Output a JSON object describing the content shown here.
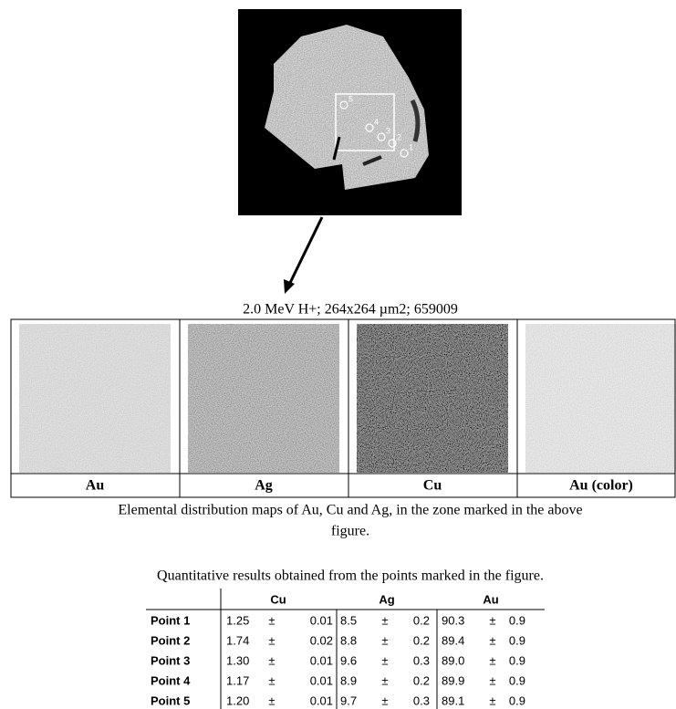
{
  "figure": {
    "point_labels": [
      "5",
      "4",
      "3",
      "2",
      "1"
    ],
    "beam_caption": "2.0 MeV H+; 264x264 µm2; 659009",
    "maps": [
      "Au",
      "Ag",
      "Cu",
      "Au (color)"
    ],
    "caption": "Elemental distribution maps of Au, Cu and Ag, in the zone marked in the above",
    "caption_cont": "figure."
  },
  "table": {
    "title": "Quantitative results obtained from the points marked in the figure.",
    "columns": [
      "Cu",
      "Ag",
      "Au"
    ],
    "pm": "±",
    "rows": [
      {
        "label": "Point 1",
        "values": [
          [
            "1.25",
            "0.01"
          ],
          [
            "8.5",
            "0.2"
          ],
          [
            "90.3",
            "0.9"
          ]
        ]
      },
      {
        "label": "Point 2",
        "values": [
          [
            "1.74",
            "0.02"
          ],
          [
            "8.8",
            "0.2"
          ],
          [
            "89.4",
            "0.9"
          ]
        ]
      },
      {
        "label": "Point 3",
        "values": [
          [
            "1.30",
            "0.01"
          ],
          [
            "9.6",
            "0.3"
          ],
          [
            "89.0",
            "0.9"
          ]
        ]
      },
      {
        "label": "Point 4",
        "values": [
          [
            "1.17",
            "0.01"
          ],
          [
            "8.9",
            "0.2"
          ],
          [
            "89.9",
            "0.9"
          ]
        ]
      },
      {
        "label": "Point 5",
        "values": [
          [
            "1.20",
            "0.01"
          ],
          [
            "9.7",
            "0.3"
          ],
          [
            "89.1",
            "0.9"
          ]
        ]
      }
    ]
  }
}
